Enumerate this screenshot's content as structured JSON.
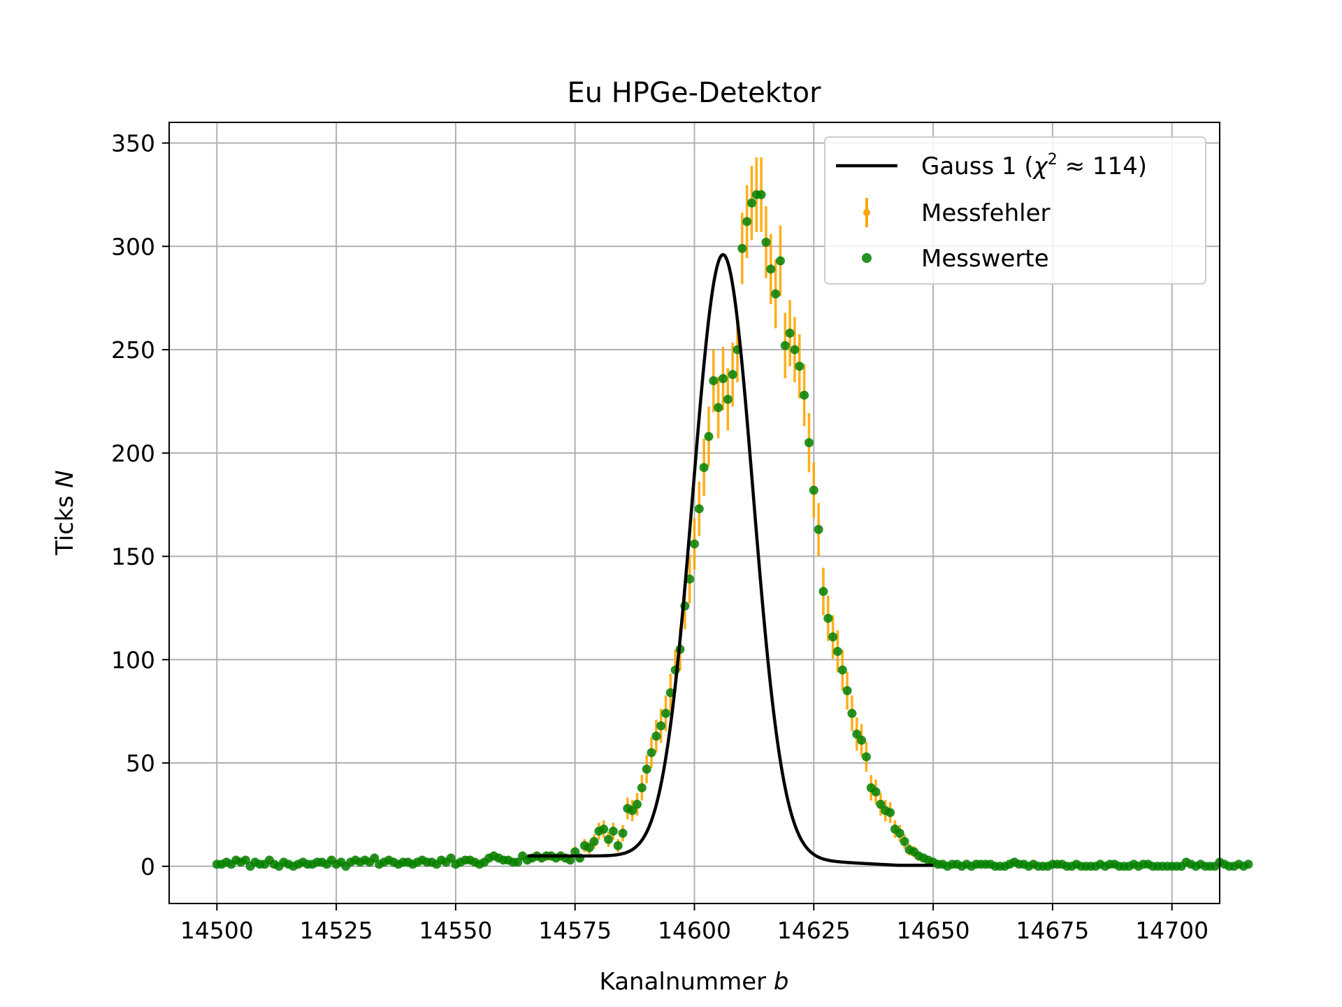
{
  "chart_data": {
    "type": "scatter",
    "title": "Eu HPGe-Detektor",
    "xlabel_text": "Kanalnummer ",
    "xlabel_var": "b",
    "ylabel_text": "Ticks ",
    "ylabel_var": "N",
    "xlim": [
      14490,
      14710
    ],
    "ylim": [
      -18,
      360
    ],
    "xticks": [
      14500,
      14525,
      14550,
      14575,
      14600,
      14625,
      14650,
      14675,
      14700
    ],
    "yticks": [
      0,
      50,
      100,
      150,
      200,
      250,
      300,
      350
    ],
    "grid": true,
    "legend_position": "top-right",
    "colors": {
      "fit": "#000000",
      "errors": "#ffa500",
      "points": "#008000",
      "grid": "#b0b0b0"
    },
    "legend": {
      "fit_prefix": "Gauss 1 (",
      "fit_chi": "χ",
      "fit_sup": "2",
      "fit_suffix": " ≈ 114)",
      "errors": "Messfehler",
      "points": "Messwerte"
    },
    "fit": {
      "amplitude": 291,
      "mean": 14606,
      "sigma": 6.3,
      "offset": 5,
      "offset_end": 0.5,
      "x_start": 14565,
      "x_end": 14650
    },
    "series": [
      {
        "name": "Messwerte",
        "x_start": 14500,
        "x_step": 1,
        "values": [
          1,
          1,
          2,
          1,
          3,
          2,
          3,
          0,
          2,
          1,
          1,
          3,
          1,
          0,
          2,
          1,
          0,
          1,
          2,
          1,
          1,
          2,
          2,
          1,
          3,
          1,
          2,
          0,
          2,
          3,
          2,
          3,
          2,
          4,
          1,
          2,
          3,
          2,
          1,
          2,
          2,
          1,
          2,
          3,
          2,
          2,
          1,
          3,
          2,
          4,
          1,
          2,
          3,
          3,
          2,
          1,
          2,
          4,
          5,
          4,
          3,
          3,
          2,
          2,
          5,
          3,
          4,
          5,
          4,
          5,
          5,
          4,
          5,
          4,
          3,
          7,
          4,
          10,
          9,
          12,
          17,
          18,
          13,
          17,
          10,
          16,
          28,
          27,
          30,
          38,
          47,
          55,
          63,
          68,
          74,
          84,
          95,
          105,
          126,
          139,
          156,
          173,
          193,
          208,
          235,
          222,
          236,
          226,
          238,
          250,
          299,
          312,
          321,
          325,
          325,
          302,
          289,
          277,
          293,
          252,
          258,
          250,
          242,
          228,
          205,
          182,
          163,
          133,
          120,
          111,
          104,
          95,
          85,
          74,
          64,
          61,
          53,
          38,
          36,
          30,
          27,
          26,
          18,
          16,
          12,
          8,
          7,
          5,
          4,
          3,
          2,
          1,
          1,
          0,
          1,
          1,
          0,
          1,
          0,
          1,
          1,
          1,
          1,
          0,
          0,
          0,
          1,
          2,
          1,
          1,
          0,
          1,
          0,
          0,
          0,
          1,
          1,
          1,
          0,
          0,
          1,
          0,
          0,
          0,
          0,
          1,
          0,
          1,
          1,
          0,
          0,
          0,
          1,
          0,
          1,
          1,
          0,
          0,
          0,
          0,
          0,
          0,
          0,
          2,
          1,
          0,
          1,
          0,
          0,
          0,
          2,
          1,
          0,
          0,
          1,
          0,
          1
        ]
      }
    ]
  }
}
